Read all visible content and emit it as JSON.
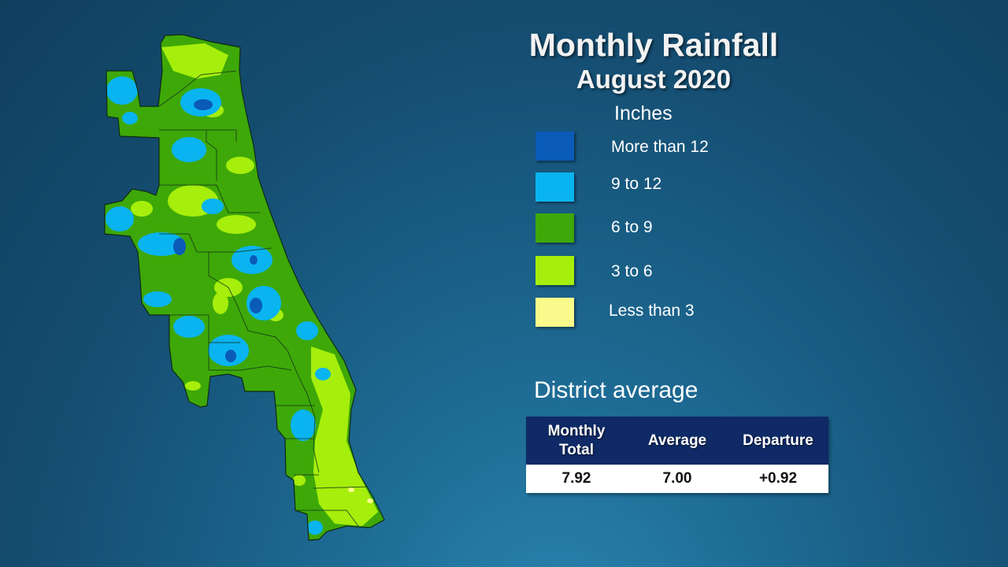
{
  "title": "Monthly Rainfall",
  "subtitle": "August 2020",
  "legend": {
    "units": "Inches",
    "classes": [
      {
        "label": "More than 12",
        "color": "#0a5bb8"
      },
      {
        "label": "9 to 12",
        "color": "#0ab4f0"
      },
      {
        "label": "6 to 9",
        "color": "#3ea808"
      },
      {
        "label": "3 to 6",
        "color": "#a6ee0c"
      },
      {
        "label": "Less than 3",
        "color": "#fafa8c"
      }
    ]
  },
  "district_average": {
    "heading": "District average",
    "headers": [
      "Monthly\nTotal",
      "Average",
      "Departure"
    ],
    "values": [
      "7.92",
      "7.00",
      "+0.92"
    ]
  }
}
